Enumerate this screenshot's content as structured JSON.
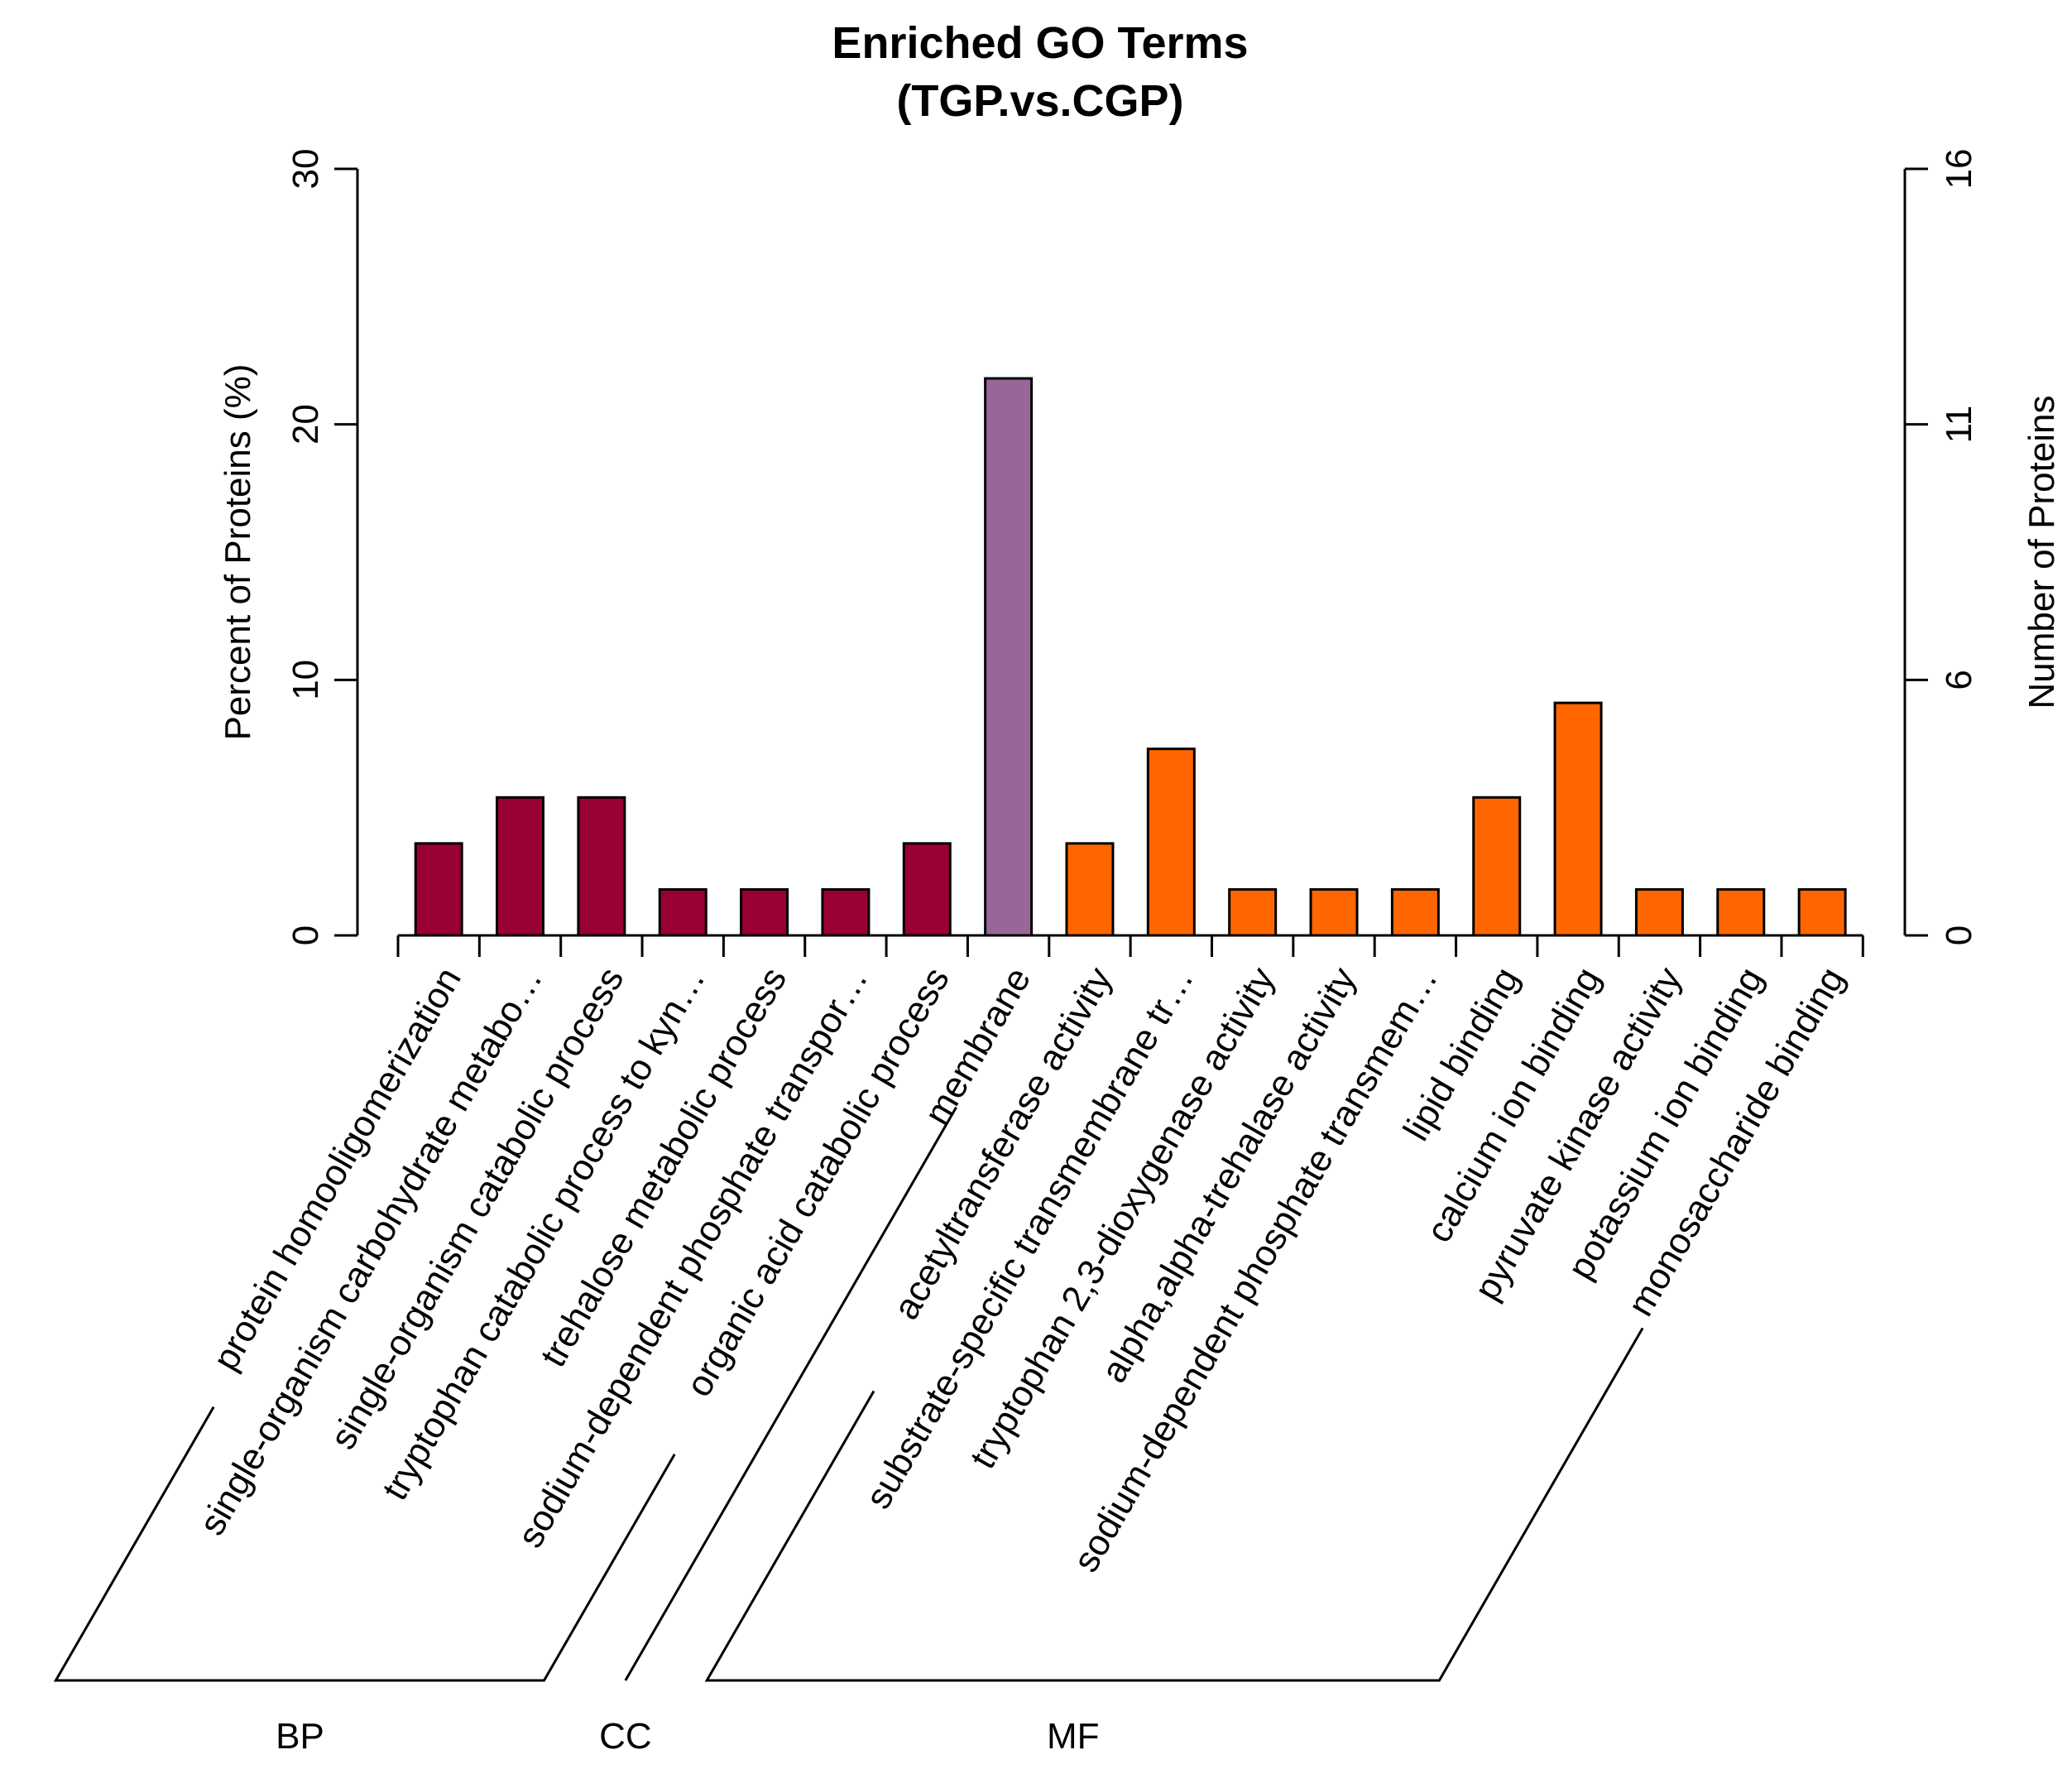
{
  "chart_data": {
    "type": "bar",
    "title": "Enriched GO Terms",
    "subtitle": "(TGP.vs.CGP)",
    "ylabel": "Percent of Proteins (%)",
    "ylabel_right": "Number of Proteins",
    "ylim": [
      0,
      30
    ],
    "yticks": [
      "0",
      "10",
      "20",
      "30"
    ],
    "ylim_right": [
      0,
      16
    ],
    "yticks_right": [
      "0",
      "6",
      "11",
      "16"
    ],
    "categories": [
      "protein homooligomerization",
      "single-organism carbohydrate metabo…",
      "single-organism catabolic process",
      "tryptophan catabolic process to kyn…",
      "trehalose metabolic process",
      "sodium-dependent phosphate transpor…",
      "organic acid catabolic process",
      "membrane",
      "acetyltransferase activity",
      "substrate-specific transmembrane tr…",
      "tryptophan 2,3-dioxygenase activity",
      "alpha,alpha-trehalase activity",
      "sodium-dependent phosphate transmem…",
      "lipid binding",
      "calcium ion binding",
      "pyruvate kinase activity",
      "potassium ion binding",
      "monosaccharide binding"
    ],
    "values": [
      3.6,
      5.4,
      5.4,
      1.8,
      1.8,
      1.8,
      3.6,
      21.8,
      3.6,
      7.3,
      1.8,
      1.8,
      1.8,
      5.4,
      9.1,
      1.8,
      1.8,
      1.8
    ],
    "groups": [
      {
        "name": "BP",
        "start": 0,
        "end": 6,
        "color": "#990033"
      },
      {
        "name": "CC",
        "start": 7,
        "end": 7,
        "color": "#996699"
      },
      {
        "name": "MF",
        "start": 8,
        "end": 17,
        "color": "#FF6600"
      }
    ]
  }
}
